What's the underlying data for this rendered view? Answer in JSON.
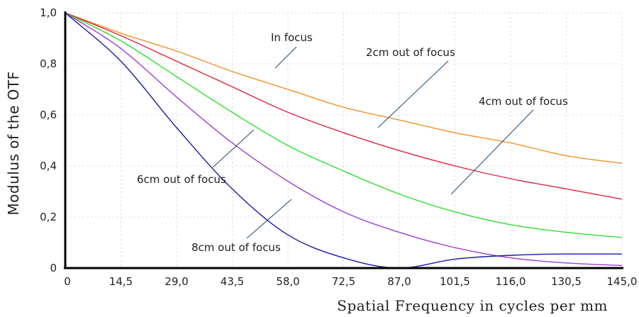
{
  "chart_data": {
    "type": "line",
    "xlabel": "Spatial Frequency in cycles per mm",
    "ylabel": "Modulus of the OTF",
    "xlim": [
      0,
      145
    ],
    "ylim": [
      0,
      1
    ],
    "grid": true,
    "x_ticks": [
      "0",
      "14,5",
      "29,0",
      "43,5",
      "58,0",
      "72,5",
      "87,0",
      "101,5",
      "116,0",
      "130,5",
      "145,0"
    ],
    "y_ticks": [
      "0",
      "0,2",
      "0,4",
      "0,6",
      "0,8",
      "1,0"
    ],
    "x_tick_values": [
      0,
      14.5,
      29,
      43.5,
      58,
      72.5,
      87,
      101.5,
      116,
      130.5,
      145
    ],
    "y_tick_values": [
      0,
      0.2,
      0.4,
      0.6,
      0.8,
      1.0
    ],
    "x": [
      0,
      14.5,
      29,
      43.5,
      58,
      72.5,
      87,
      101.5,
      116,
      130.5,
      145
    ],
    "series": [
      {
        "name": "In focus",
        "color": "#f2922a",
        "values": [
          1.0,
          0.92,
          0.85,
          0.77,
          0.7,
          0.63,
          0.58,
          0.53,
          0.49,
          0.44,
          0.41
        ]
      },
      {
        "name": "2cm out of focus",
        "color": "#e0233c",
        "values": [
          1.0,
          0.91,
          0.81,
          0.71,
          0.61,
          0.53,
          0.46,
          0.4,
          0.35,
          0.31,
          0.27
        ]
      },
      {
        "name": "4cm out of focus",
        "color": "#2ee02e",
        "values": [
          1.0,
          0.89,
          0.75,
          0.61,
          0.48,
          0.38,
          0.29,
          0.22,
          0.17,
          0.14,
          0.12
        ]
      },
      {
        "name": "6cm out of focus",
        "color": "#a040d0",
        "values": [
          1.0,
          0.86,
          0.67,
          0.49,
          0.34,
          0.22,
          0.14,
          0.08,
          0.04,
          0.02,
          0.01
        ]
      },
      {
        "name": "8cm out of focus",
        "color": "#1a1aa8",
        "values": [
          1.0,
          0.81,
          0.55,
          0.31,
          0.13,
          0.04,
          0.0,
          0.035,
          0.05,
          0.055,
          0.055
        ]
      }
    ],
    "annotations": [
      {
        "text": "In focus",
        "series": 0
      },
      {
        "text": "2cm out of focus",
        "series": 1
      },
      {
        "text": "4cm out of focus",
        "series": 2
      },
      {
        "text": "6cm out of focus",
        "series": 3
      },
      {
        "text": "8cm out of focus",
        "series": 4
      }
    ]
  }
}
